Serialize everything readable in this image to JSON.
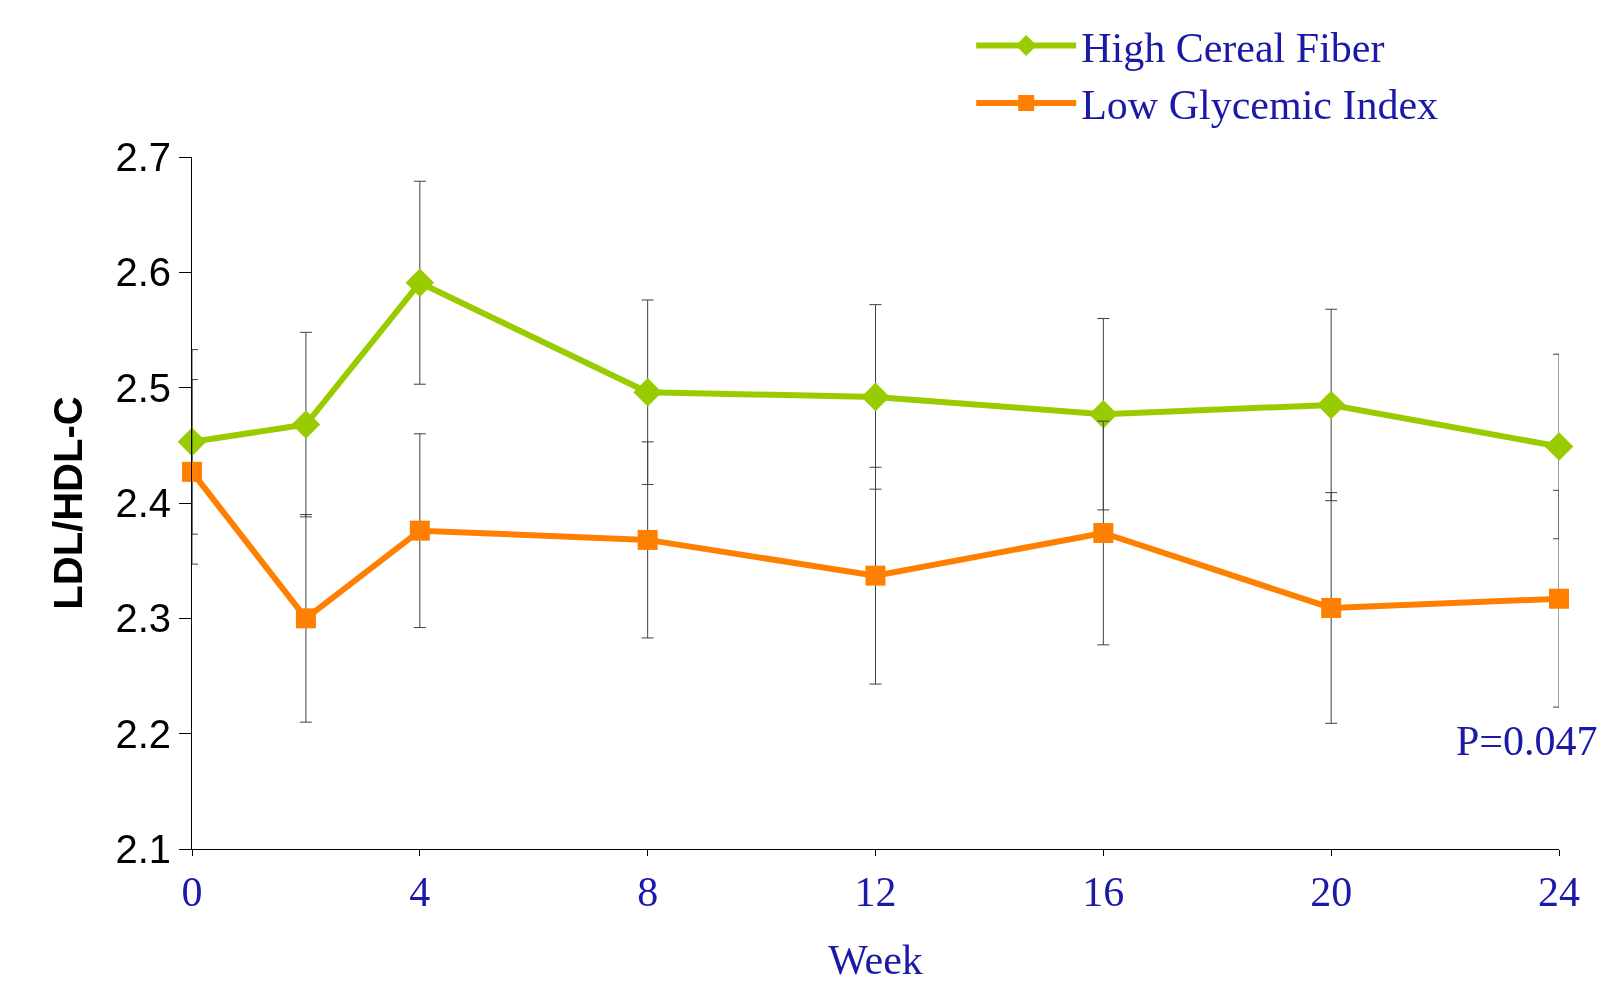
{
  "chart_data": {
    "type": "line",
    "xlabel": "Week",
    "ylabel": "LDL/HDL-C",
    "x": [
      0,
      2,
      4,
      8,
      12,
      16,
      20,
      24
    ],
    "xlim": [
      0,
      24
    ],
    "xticks": [
      0,
      4,
      8,
      12,
      16,
      20,
      24
    ],
    "ylim": [
      2.1,
      2.7
    ],
    "yticks": [
      2.1,
      2.2,
      2.3,
      2.4,
      2.5,
      2.6,
      2.7
    ],
    "legend": "top right",
    "line_style": "solid",
    "series": [
      {
        "name": "High Cereal Fiber",
        "color": "#99cc00",
        "marker": "diamond",
        "values": [
          2.453,
          2.468,
          2.591,
          2.496,
          2.492,
          2.477,
          2.485,
          2.449
        ],
        "errors": [
          0.08,
          0.08,
          0.088,
          0.08,
          0.08,
          0.083,
          0.083,
          0.08
        ]
      },
      {
        "name": "Low Glycemic Index",
        "color": "#ff8000",
        "marker": "square",
        "values": [
          2.427,
          2.3,
          2.376,
          2.368,
          2.337,
          2.374,
          2.309,
          2.317
        ],
        "errors": [
          0.08,
          0.09,
          0.084,
          0.085,
          0.094,
          0.097,
          0.1,
          0.094
        ]
      }
    ],
    "annotations": [
      "P=0.047"
    ]
  }
}
